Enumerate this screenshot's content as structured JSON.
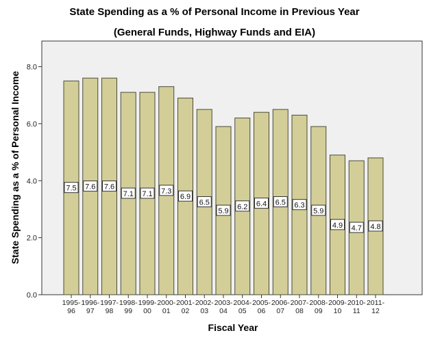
{
  "chart_data": {
    "type": "bar",
    "title": "State Spending as a % of Personal Income in Previous Year",
    "subtitle": "(General Funds, Highway Funds and EIA)",
    "xlabel": "Fiscal Year",
    "ylabel": "State Spending as a % of Personal Income",
    "categories": [
      [
        "1995-",
        "96"
      ],
      [
        "1996-",
        "97"
      ],
      [
        "1997-",
        "98"
      ],
      [
        "1998-",
        "99"
      ],
      [
        "1999-",
        "00"
      ],
      [
        "2000-",
        "01"
      ],
      [
        "2001-",
        "02"
      ],
      [
        "2002-",
        "03"
      ],
      [
        "2003-",
        "04"
      ],
      [
        "2004-",
        "05"
      ],
      [
        "2005-",
        "06"
      ],
      [
        "2006-",
        "07"
      ],
      [
        "2007-",
        "08"
      ],
      [
        "2008-",
        "09"
      ],
      [
        "2009-",
        "10"
      ],
      [
        "2010-",
        "11"
      ],
      [
        "2011-",
        "12"
      ]
    ],
    "values": [
      7.5,
      7.6,
      7.6,
      7.1,
      7.1,
      7.3,
      6.9,
      6.5,
      5.9,
      6.2,
      6.4,
      6.5,
      6.3,
      5.9,
      4.9,
      4.7,
      4.8
    ],
    "ylim": [
      0,
      8.9
    ],
    "yticks": [
      "0.0",
      "2.0",
      "4.0",
      "6.0",
      "8.0"
    ],
    "grid": false,
    "colors": {
      "bar": "#d3ce98",
      "bar_stroke": "#4a4a3a",
      "plot_bg": "#f0f0f0"
    }
  }
}
